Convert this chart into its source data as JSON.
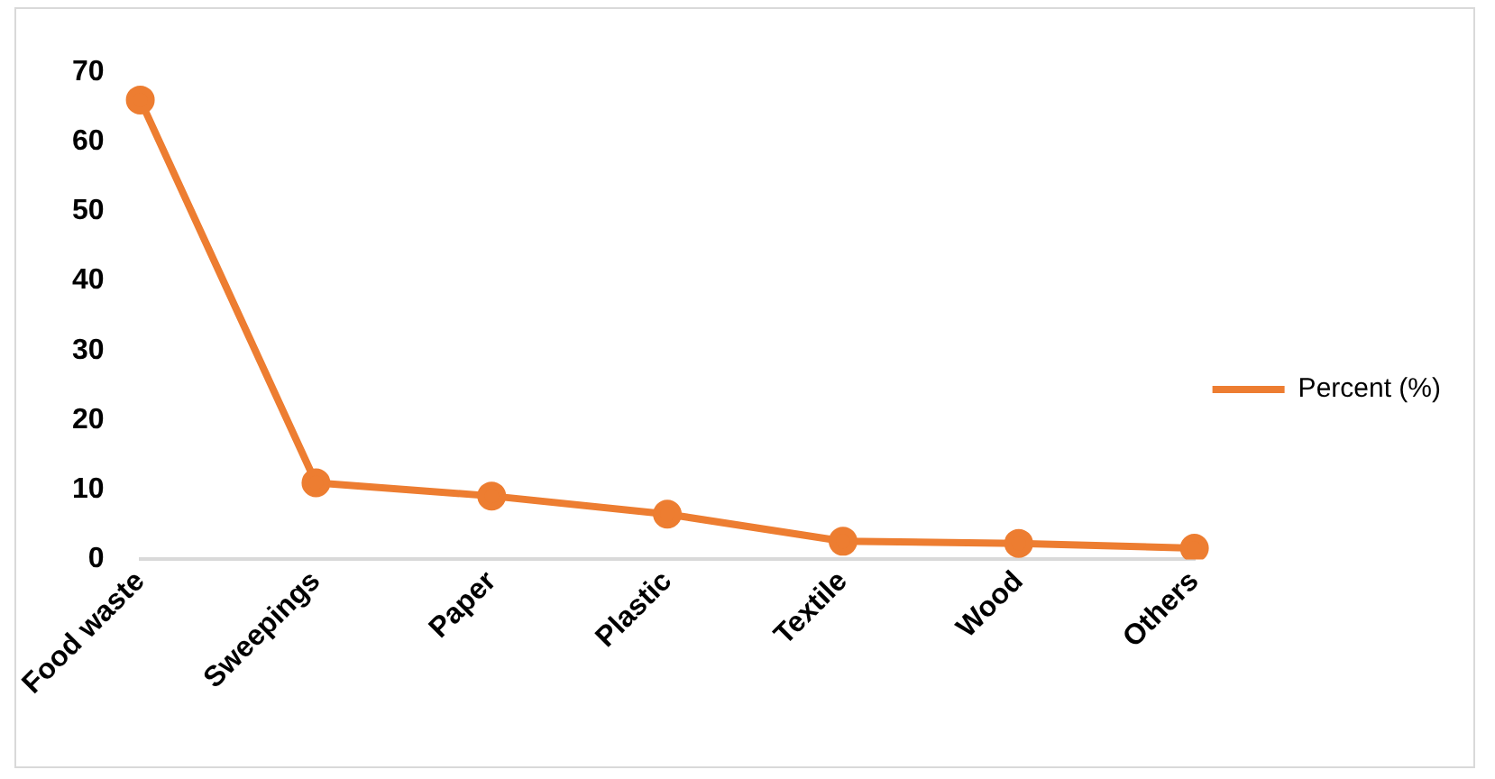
{
  "chart_data": {
    "type": "line",
    "categories": [
      "Food waste",
      "Sweepings",
      "Paper",
      "Plastic",
      "Textile",
      "Wood",
      "Others"
    ],
    "series": [
      {
        "name": "Percent (%)",
        "color": "#ed7d31",
        "values": [
          66,
          11,
          9.1,
          6.5,
          2.6,
          2.3,
          1.6
        ]
      }
    ],
    "ylim": [
      0,
      70
    ],
    "yticks": [
      0,
      10,
      20,
      30,
      40,
      50,
      60,
      70
    ],
    "grid": false,
    "legend": "right",
    "marker": "circle",
    "line_style": "solid"
  }
}
